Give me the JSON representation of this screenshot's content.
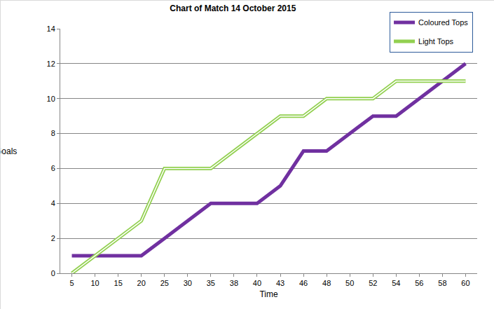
{
  "chart_data": {
    "type": "line",
    "title": "Chart of Match 14 October 2015",
    "x_label": "Time",
    "y_label": "Goals",
    "categories": [
      "5",
      "10",
      "15",
      "20",
      "25",
      "30",
      "35",
      "38",
      "40",
      "43",
      "46",
      "48",
      "50",
      "52",
      "54",
      "56",
      "58",
      "60"
    ],
    "series": [
      {
        "name": "Coloured Tops",
        "color": "#7030a0",
        "line_style": "solid",
        "values": [
          1,
          1,
          1,
          1,
          2,
          3,
          4,
          4,
          4,
          5,
          7,
          7,
          8,
          9,
          9,
          10,
          11,
          12
        ]
      },
      {
        "name": "Light Tops",
        "color": "#92d050",
        "line_style": "double",
        "values": [
          0,
          1,
          2,
          3,
          6,
          6,
          6,
          7,
          8,
          9,
          9,
          10,
          10,
          10,
          11,
          11,
          11,
          11
        ]
      }
    ],
    "ylim": [
      0,
      14
    ],
    "yticks": [
      0,
      2,
      4,
      6,
      8,
      10,
      12,
      14
    ],
    "grid": true,
    "legend": "top-right"
  }
}
